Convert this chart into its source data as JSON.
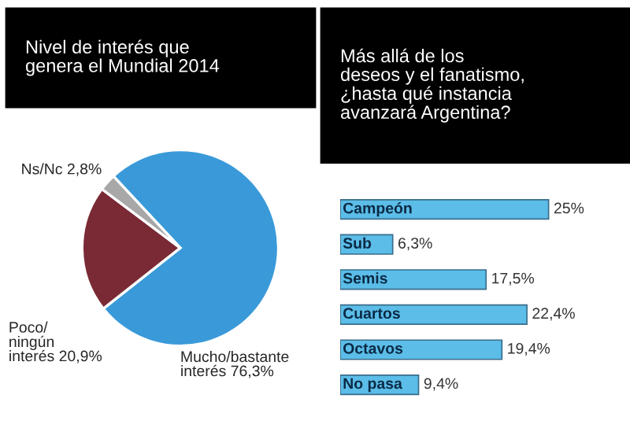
{
  "chart_data": [
    {
      "type": "pie",
      "title": "Nivel de interés que\ngenera el Mundial 2014",
      "categories": [
        "Mucho/bastante\ninterés",
        "Poco/\nningún\ninterés",
        "Ns/Nc"
      ],
      "values": [
        76.3,
        20.9,
        2.8
      ],
      "value_labels": [
        "76,3%",
        "20,9%",
        "2,8%"
      ],
      "colors": [
        "#3a9ad9",
        "#7a2a35",
        "#a8a8a8"
      ]
    },
    {
      "type": "bar",
      "orientation": "horizontal",
      "title": "Más allá de los\ndeseos y el fanatismo,\n¿hasta qué instancia\navanzará Argentina?",
      "categories": [
        "Campeón",
        "Sub",
        "Semis",
        "Cuartos",
        "Octavos",
        "No pasa"
      ],
      "values": [
        25,
        6.3,
        17.5,
        22.4,
        19.4,
        9.4
      ],
      "value_labels": [
        "25%",
        "6,3%",
        "17,5%",
        "22,4%",
        "19,4%",
        "9,4%"
      ],
      "color": "#5bbde8"
    }
  ]
}
